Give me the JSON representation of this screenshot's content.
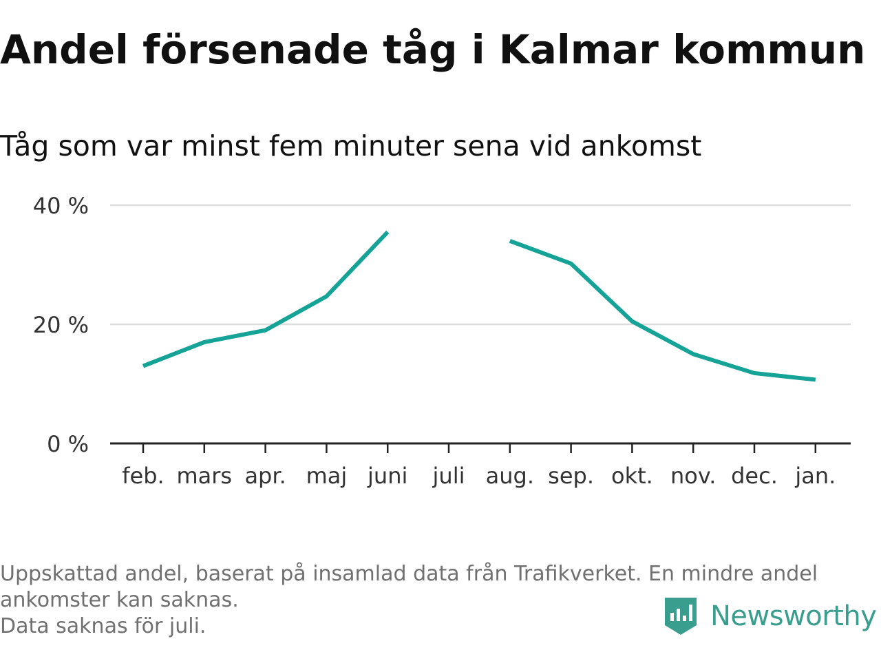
{
  "title": "Andel försenade tåg i Kalmar kommun",
  "subtitle": "Tåg som var minst fem minuter sena vid ankomst",
  "footer": {
    "line1": "Uppskattad andel, baserat på insamlad data från Trafikverket. En mindre andel",
    "line2": "ankomster kan saknas.",
    "line3": "Data saknas för juli."
  },
  "brand": {
    "name": "Newsworthy",
    "color": "#3a9e8f"
  },
  "colors": {
    "series": "#14a396",
    "grid": "#dddddd",
    "axis": "#222222"
  },
  "chart_data": {
    "type": "line",
    "categories": [
      "feb.",
      "mars",
      "apr.",
      "maj",
      "juni",
      "juli",
      "aug.",
      "sep.",
      "okt.",
      "nov.",
      "dec.",
      "jan."
    ],
    "series": [
      {
        "values": [
          13,
          17,
          19,
          24.7,
          35.5,
          null,
          34,
          30.2,
          20.5,
          15,
          11.8,
          10.7
        ]
      }
    ],
    "yticks": [
      {
        "value": 0,
        "label": "0 %"
      },
      {
        "value": 20,
        "label": "20 %"
      },
      {
        "value": 40,
        "label": "40 %"
      }
    ],
    "ylim": [
      0,
      40
    ],
    "grid": true,
    "legend": "none"
  }
}
